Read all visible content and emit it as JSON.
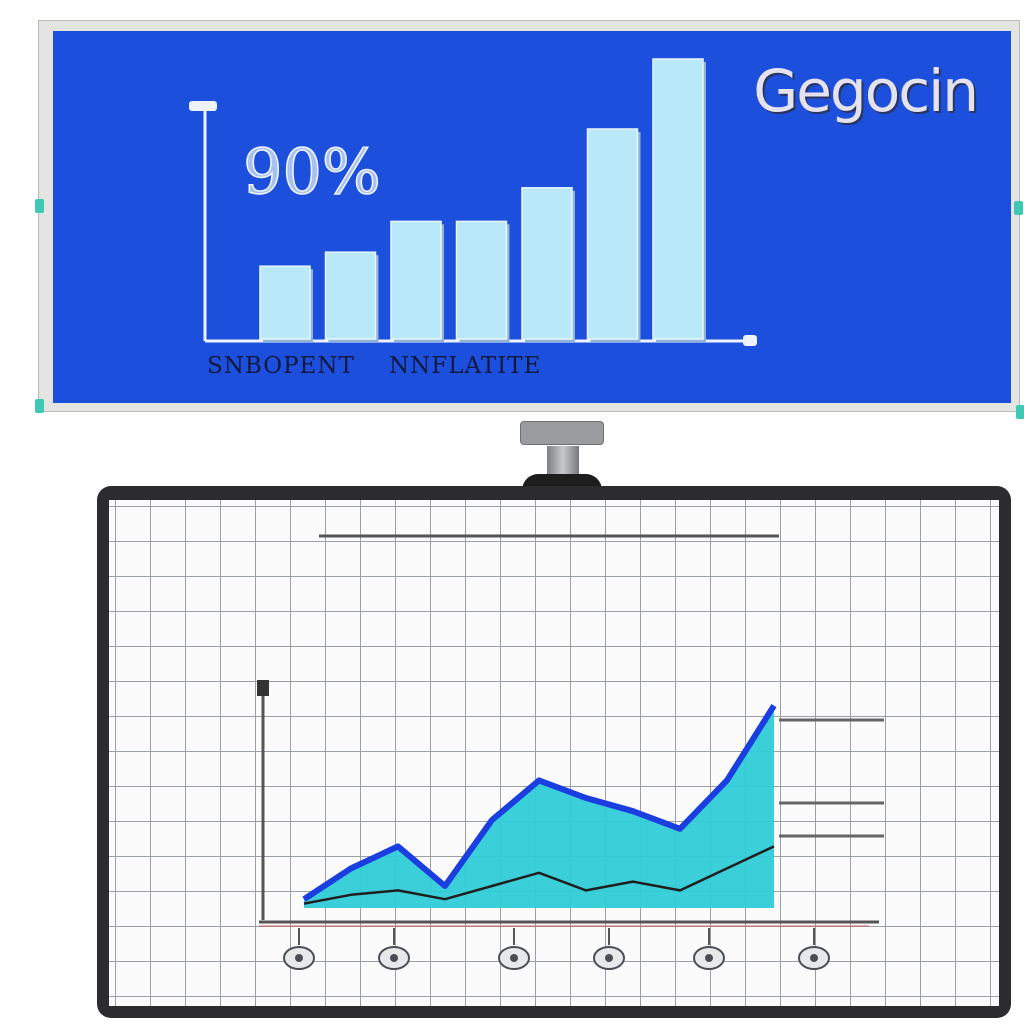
{
  "brand": "Gegocin",
  "chart_data": [
    {
      "type": "bar",
      "big_stat": "90%",
      "categories": [
        "",
        "",
        "",
        "",
        "",
        "",
        ""
      ],
      "values": [
        26,
        31,
        42,
        42,
        54,
        75,
        100
      ],
      "ylim": [
        0,
        105
      ],
      "category_labels": [
        "SNBOPENT",
        "NNFLATITE"
      ],
      "bar_color": "#b9e8f8",
      "bar_shadow": "#8fb5d6",
      "axis_color": "#eef2ff"
    },
    {
      "type": "area",
      "title": "",
      "x": [
        0,
        1,
        2,
        3,
        4,
        5,
        6,
        7,
        8,
        9,
        10
      ],
      "series": [
        {
          "values": [
            2,
            9,
            14,
            5,
            20,
            29,
            25,
            22,
            18,
            29,
            46
          ],
          "fill": "#30ccd8",
          "stroke": "#1a3ee0"
        },
        {
          "values": [
            1,
            3,
            4,
            2,
            5,
            8,
            4,
            6,
            4,
            9,
            14
          ],
          "stroke": "#202020"
        }
      ],
      "ylim": [
        0,
        50
      ],
      "grid": true,
      "tick_icons": [
        "globe-icon",
        "gear-icon",
        "badge-icon",
        "bell-icon",
        "plug-icon",
        "lock-icon"
      ]
    }
  ]
}
